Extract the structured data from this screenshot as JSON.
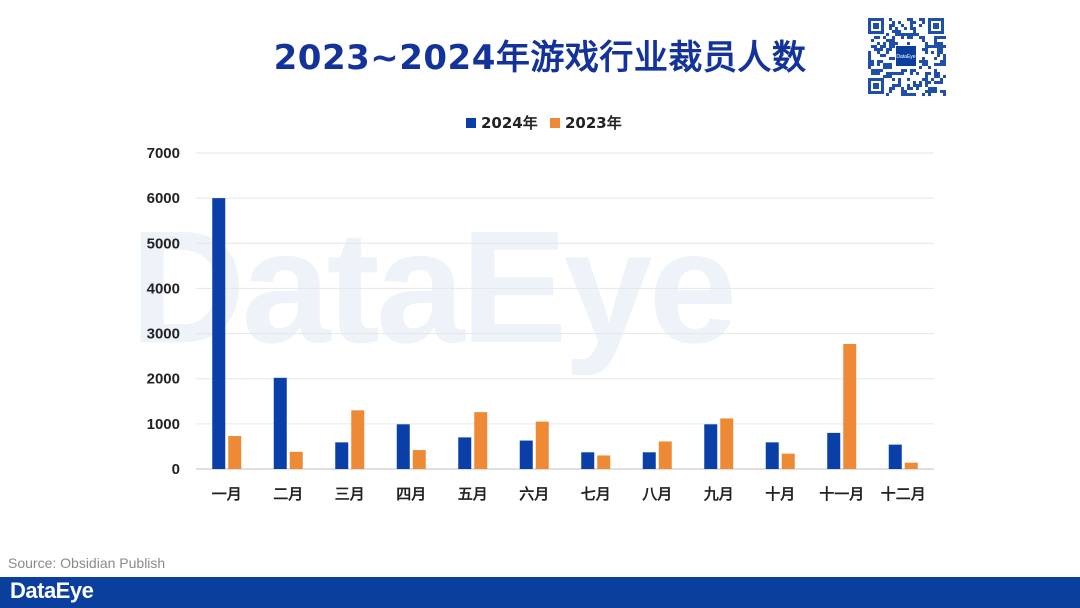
{
  "title": "2023~2024年游戏行业裁员人数",
  "source": "Source: Obsidian Publish",
  "brand": "DataEye",
  "qr_center_label": "DataEye",
  "colors": {
    "title": "#14339a",
    "series_2024": "#0b3fa8",
    "series_2023": "#ee8a36",
    "footer": "#0b3f9e",
    "grid": "#e6e6e6"
  },
  "chart_data": {
    "type": "bar",
    "categories": [
      "一月",
      "二月",
      "三月",
      "四月",
      "五月",
      "六月",
      "七月",
      "八月",
      "九月",
      "十月",
      "十一月",
      "十二月"
    ],
    "series": [
      {
        "name": "2024年",
        "values": [
          6000,
          2020,
          590,
          990,
          700,
          630,
          370,
          370,
          990,
          590,
          800,
          540
        ]
      },
      {
        "name": "2023年",
        "values": [
          730,
          380,
          1300,
          420,
          1260,
          1050,
          300,
          610,
          1120,
          340,
          2770,
          140
        ]
      }
    ],
    "yticks": [
      0,
      1000,
      2000,
      3000,
      4000,
      5000,
      6000,
      7000
    ],
    "ylim": [
      0,
      7000
    ],
    "grid": true,
    "legend_position": "top-center"
  }
}
